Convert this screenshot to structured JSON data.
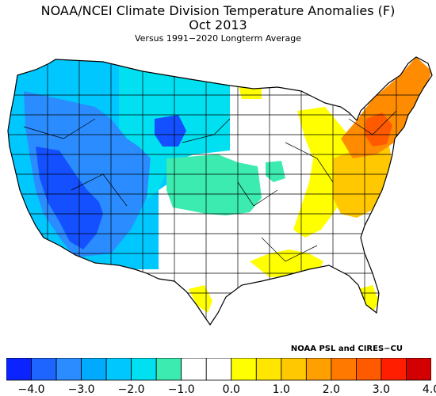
{
  "title": "NOAA/NCEI Climate Division Temperature Anomalies (F)",
  "period": "Oct 2013",
  "subtitle": "Versus 1991−2020 Longterm Average",
  "credit": "NOAA PSL and CIRES−CU",
  "colors": {
    "map_outline": "#000000",
    "neutral": "#ffffff",
    "west_deep": "#1450ff",
    "west_mid": "#2a8cff",
    "west_light": "#00c8ff",
    "mountain": "#00e0f0",
    "plains_teal": "#3cebb0",
    "east_yellow": "#ffff00",
    "east_gold": "#ffc800",
    "northeast_orange": "#ff8c00",
    "core_red": "#ff5a00"
  },
  "legend": {
    "colors": [
      "#0a23ff",
      "#1e64ff",
      "#2a8cff",
      "#00aaff",
      "#00c8ff",
      "#00e0f0",
      "#3cebb0",
      "#ffffff",
      "#ffffff",
      "#ffff00",
      "#ffe600",
      "#ffc800",
      "#ffa000",
      "#ff7800",
      "#ff5a00",
      "#ff1e00",
      "#d20000"
    ],
    "ticks": [
      "−4.0",
      "−3.0",
      "−2.0",
      "−1.0",
      "0.0",
      "1.0",
      "2.0",
      "3.0",
      "4.0"
    ]
  }
}
